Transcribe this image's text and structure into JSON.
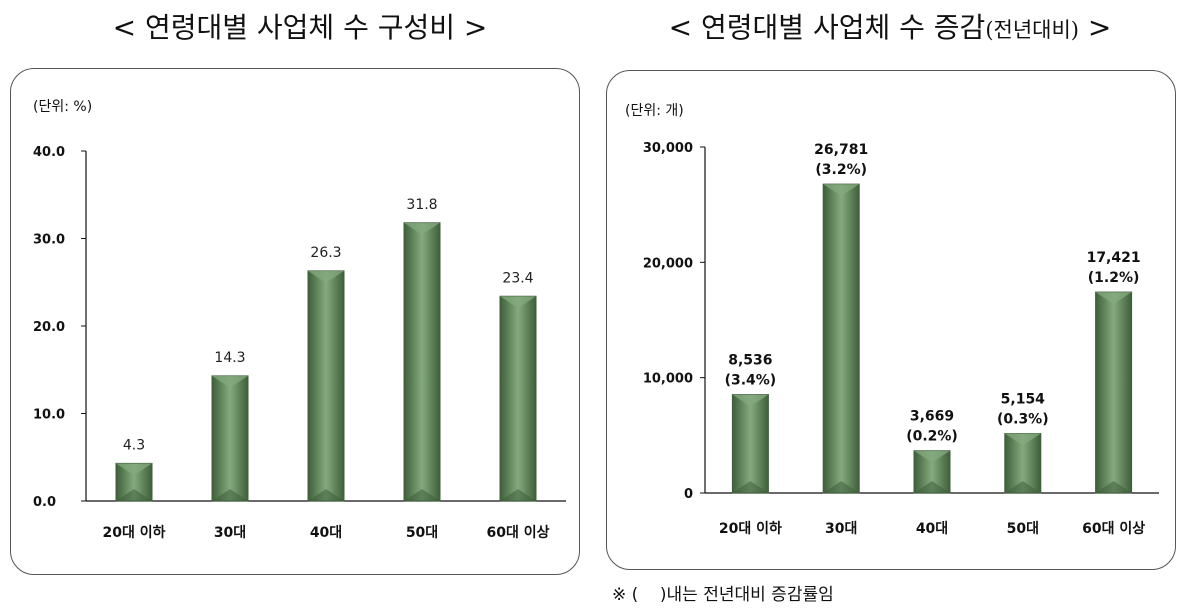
{
  "titles": {
    "left": "< 연령대별 사업체 수 구성비 >",
    "right_main": "< 연령대별 사업체 수 증감",
    "right_sub": "(전년대비)",
    "right_end": " >"
  },
  "footnote": "※ (    )내는 전년대비 증감률임",
  "colors": {
    "bar": "#5f8a5a",
    "bar_dark": "#3e5f3a",
    "bar_light": "#86aa7f",
    "axis": "#111111"
  },
  "chart_data": [
    {
      "type": "bar",
      "title": "< 연령대별 사업체 수 구성비 >",
      "unit_label": "(단위: %)",
      "categories": [
        "20대 이하",
        "30대",
        "40대",
        "50대",
        "60대 이상"
      ],
      "values": [
        4.3,
        14.3,
        26.3,
        31.8,
        23.4
      ],
      "value_labels": [
        "4.3",
        "14.3",
        "26.3",
        "31.8",
        "23.4"
      ],
      "yticks": [
        "0.0",
        "10.0",
        "20.0",
        "30.0",
        "40.0"
      ],
      "ylim": [
        0,
        40
      ],
      "grid": false
    },
    {
      "type": "bar",
      "title": "< 연령대별 사업체 수 증감(전년대비) >",
      "unit_label": "(단위: 개)",
      "categories": [
        "20대 이하",
        "30대",
        "40대",
        "50대",
        "60대 이상"
      ],
      "values": [
        8536,
        26781,
        3669,
        5154,
        17421
      ],
      "value_labels": [
        "8,536",
        "26,781",
        "3,669",
        "5,154",
        "17,421"
      ],
      "change_labels": [
        "(3.4%)",
        "(3.2%)",
        "(0.2%)",
        "(0.3%)",
        "(1.2%)"
      ],
      "yticks": [
        "0",
        "10,000",
        "20,000",
        "30,000"
      ],
      "ylim": [
        0,
        30000
      ],
      "grid": false
    }
  ]
}
